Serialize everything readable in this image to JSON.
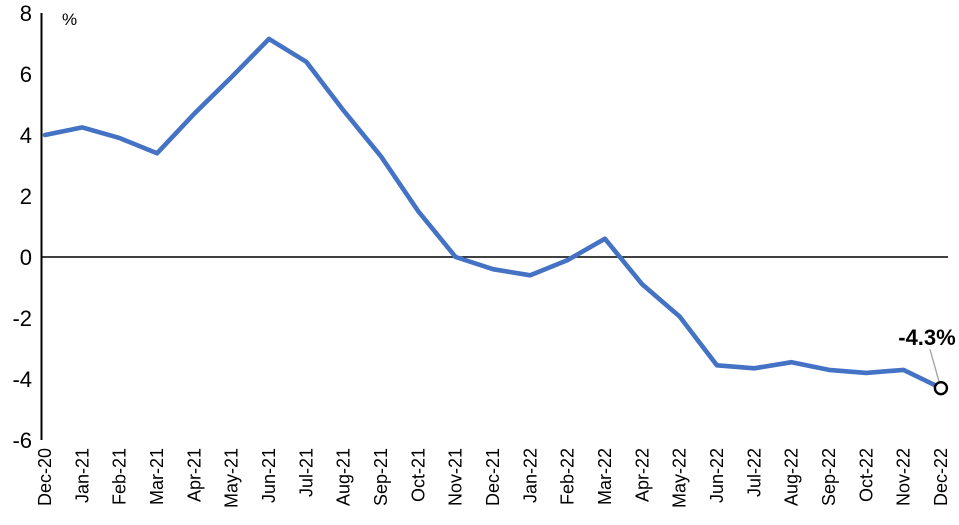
{
  "chart_data": {
    "type": "line",
    "title": "",
    "xlabel": "",
    "ylabel": "%",
    "ylim": [
      -6,
      8
    ],
    "ytick_interval": 2,
    "ytick_values": [
      8,
      6,
      4,
      2,
      0,
      -2,
      -4,
      -6
    ],
    "ytick_labels": [
      "8",
      "6",
      "4",
      "2",
      "0",
      "-2",
      "-4",
      "-6"
    ],
    "grid": false,
    "legend": "none",
    "categories": [
      "Dec-20",
      "Jan-21",
      "Feb-21",
      "Mar-21",
      "Apr-21",
      "May-21",
      "Jun-21",
      "Jul-21",
      "Aug-21",
      "Sep-21",
      "Oct-21",
      "Nov-21",
      "Dec-21",
      "Jan-22",
      "Feb-22",
      "Mar-22",
      "Apr-22",
      "May-22",
      "Jun-22",
      "Jul-22",
      "Aug-22",
      "Sep-22",
      "Oct-22",
      "Nov-22",
      "Dec-22"
    ],
    "values": [
      4.0,
      4.25,
      3.9,
      3.4,
      4.7,
      5.9,
      7.15,
      6.4,
      4.8,
      3.3,
      1.5,
      0.0,
      -0.4,
      -0.6,
      -0.1,
      0.6,
      -0.9,
      -1.95,
      -3.55,
      -3.65,
      -3.45,
      -3.7,
      -3.8,
      -3.7,
      -4.3
    ],
    "annotation": {
      "text": "-4.3%",
      "target_category": "Dec-22",
      "target_value": -4.3
    },
    "colors": {
      "line": "#4472C4",
      "axis": "#000000",
      "leader_line": "#A6A6A6",
      "marker_fill": "#ffffff",
      "marker_stroke": "#000000"
    }
  }
}
